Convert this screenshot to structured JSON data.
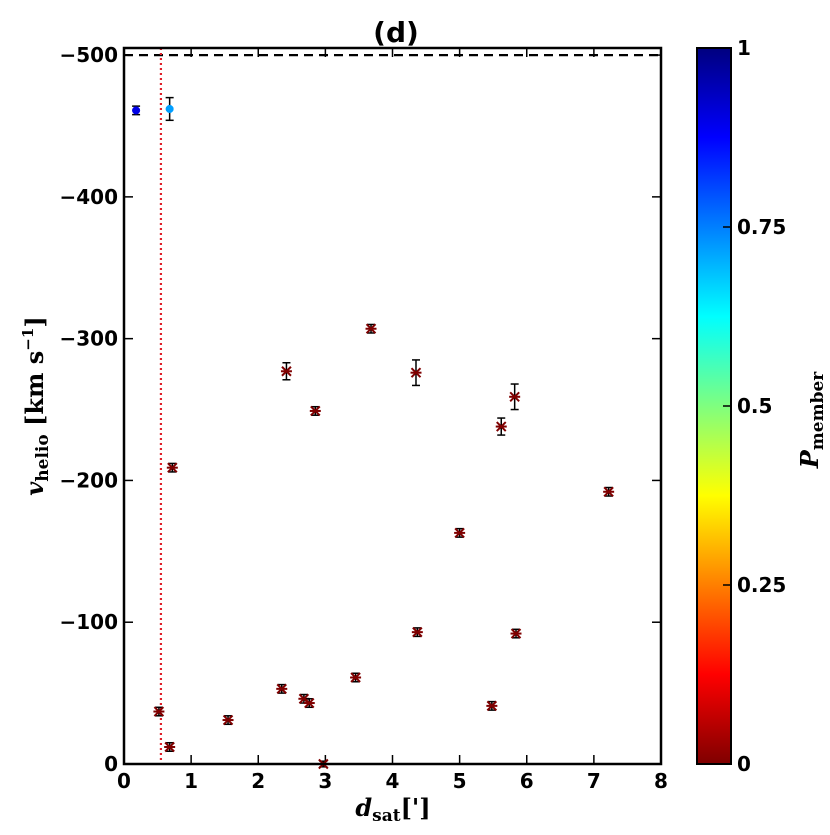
{
  "chart_data": {
    "type": "scatter",
    "title": "(d)",
    "xlabel": {
      "main": "d",
      "sub": "sat",
      "suffix": "[']"
    },
    "ylabel": {
      "main": "v",
      "sub": "helio",
      "suffix": " [km s",
      "sup": "−1",
      "close": "]"
    },
    "xlim": [
      0,
      8
    ],
    "ylim": [
      0,
      -505
    ],
    "x_ticks": [
      0,
      1,
      2,
      3,
      4,
      5,
      6,
      7,
      8
    ],
    "x_tick_labels": [
      "0",
      "1",
      "2",
      "3",
      "4",
      "5",
      "6",
      "7",
      "8"
    ],
    "y_ticks": [
      0,
      -100,
      -200,
      -300,
      -400,
      -500
    ],
    "y_tick_labels": [
      "0",
      "−100",
      "−200",
      "−300",
      "−400",
      "−500"
    ],
    "reference_lines": [
      {
        "orientation": "horizontal",
        "value": -500,
        "style": "dashed",
        "color": "#000000"
      },
      {
        "orientation": "vertical",
        "value": 0.55,
        "style": "dotted",
        "color": "#e0202a"
      }
    ],
    "colorbar": {
      "label_main": "P",
      "label_sub": "member",
      "range": [
        0,
        1
      ],
      "ticks": [
        0,
        0.25,
        0.5,
        0.75,
        1
      ],
      "tick_labels": [
        "0",
        "0.25",
        "0.5",
        "0.75",
        "1"
      ],
      "colormap": [
        "#7f0000",
        "#ff0000",
        "#ff7f00",
        "#ffff00",
        "#7fff7f",
        "#00ffff",
        "#007fff",
        "#0000ff",
        "#00007f"
      ]
    },
    "points": [
      {
        "x": 0.18,
        "y": -461,
        "err": 3,
        "p": 0.9
      },
      {
        "x": 0.68,
        "y": -462,
        "err": 8,
        "p": 0.72
      },
      {
        "x": 0.72,
        "y": -209,
        "err": 3,
        "p": 0
      },
      {
        "x": 0.52,
        "y": -37,
        "err": 3,
        "p": 0
      },
      {
        "x": 0.68,
        "y": -12,
        "err": 3,
        "p": 0
      },
      {
        "x": 1.55,
        "y": -31,
        "err": 3,
        "p": 0
      },
      {
        "x": 2.35,
        "y": -53,
        "err": 3,
        "p": 0
      },
      {
        "x": 2.42,
        "y": -277,
        "err": 6,
        "p": 0
      },
      {
        "x": 2.68,
        "y": -46,
        "err": 3,
        "p": 0
      },
      {
        "x": 2.76,
        "y": -43,
        "err": 3,
        "p": 0
      },
      {
        "x": 2.85,
        "y": -249,
        "err": 3,
        "p": 0
      },
      {
        "x": 2.97,
        "y": 0,
        "err": 2,
        "p": 0
      },
      {
        "x": 3.45,
        "y": -61,
        "err": 3,
        "p": 0
      },
      {
        "x": 3.68,
        "y": -307,
        "err": 3,
        "p": 0
      },
      {
        "x": 4.35,
        "y": -276,
        "err": 9,
        "p": 0
      },
      {
        "x": 4.37,
        "y": -93,
        "err": 3,
        "p": 0
      },
      {
        "x": 5.0,
        "y": -163,
        "err": 3,
        "p": 0
      },
      {
        "x": 5.48,
        "y": -41,
        "err": 3,
        "p": 0
      },
      {
        "x": 5.62,
        "y": -238,
        "err": 6,
        "p": 0
      },
      {
        "x": 5.82,
        "y": -259,
        "err": 9,
        "p": 0
      },
      {
        "x": 5.84,
        "y": -92,
        "err": 3,
        "p": 0
      },
      {
        "x": 7.22,
        "y": -192,
        "err": 3,
        "p": 0
      }
    ]
  }
}
